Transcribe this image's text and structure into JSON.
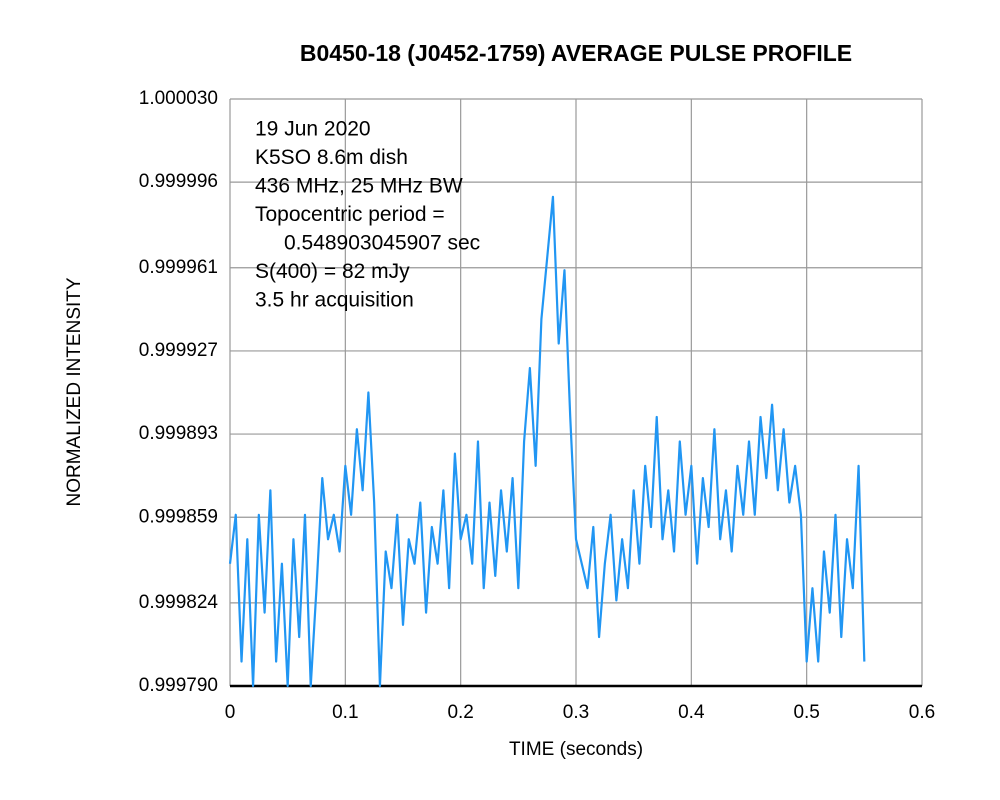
{
  "chart_data": {
    "type": "line",
    "title": "B0450-18 (J0452-1759) AVERAGE PULSE PROFILE",
    "x_label": "TIME (seconds)",
    "y_label": "NORMALIZED INTENSITY",
    "annotations": [
      "19 Jun 2020",
      "K5SO 8.6m dish",
      "436 MHz, 25 MHz BW",
      "Topocentric period =",
      "0.548903045907 sec",
      "S(400) = 82 mJy",
      "3.5 hr acquisition"
    ],
    "x": [
      0,
      0.005,
      0.01,
      0.015,
      0.02,
      0.025,
      0.03,
      0.035,
      0.04,
      0.045,
      0.05,
      0.055,
      0.06,
      0.065,
      0.07,
      0.075,
      0.08,
      0.085,
      0.09,
      0.095,
      0.1,
      0.105,
      0.11,
      0.115,
      0.12,
      0.125,
      0.13,
      0.135,
      0.14,
      0.145,
      0.15,
      0.155,
      0.16,
      0.165,
      0.17,
      0.175,
      0.18,
      0.185,
      0.19,
      0.195,
      0.2,
      0.205,
      0.21,
      0.215,
      0.22,
      0.225,
      0.23,
      0.235,
      0.24,
      0.245,
      0.25,
      0.255,
      0.26,
      0.265,
      0.27,
      0.275,
      0.28,
      0.285,
      0.29,
      0.295,
      0.3,
      0.305,
      0.31,
      0.315,
      0.32,
      0.325,
      0.33,
      0.335,
      0.34,
      0.345,
      0.35,
      0.355,
      0.36,
      0.365,
      0.37,
      0.375,
      0.38,
      0.385,
      0.39,
      0.395,
      0.4,
      0.405,
      0.41,
      0.415,
      0.42,
      0.425,
      0.43,
      0.435,
      0.44,
      0.445,
      0.45,
      0.455,
      0.46,
      0.465,
      0.47,
      0.475,
      0.48,
      0.485,
      0.49,
      0.495,
      0.5,
      0.505,
      0.51,
      0.515,
      0.52,
      0.525,
      0.53,
      0.535,
      0.54,
      0.545,
      0.55
    ],
    "series": [
      {
        "name": "pulse profile",
        "color": "#2196f3",
        "values": [
          0.99984,
          0.99986,
          0.9998,
          0.99985,
          0.99979,
          0.99986,
          0.99982,
          0.99987,
          0.9998,
          0.99984,
          0.99979,
          0.99985,
          0.99981,
          0.99986,
          0.99979,
          0.99983,
          0.999875,
          0.99985,
          0.99986,
          0.999845,
          0.99988,
          0.99986,
          0.999895,
          0.99987,
          0.99991,
          0.999865,
          0.99979,
          0.999845,
          0.99983,
          0.99986,
          0.999815,
          0.99985,
          0.99984,
          0.999865,
          0.99982,
          0.999855,
          0.99984,
          0.99987,
          0.99983,
          0.999885,
          0.99985,
          0.99986,
          0.99984,
          0.99989,
          0.99983,
          0.999865,
          0.999835,
          0.99987,
          0.999845,
          0.999875,
          0.99983,
          0.99989,
          0.99992,
          0.99988,
          0.99994,
          0.999965,
          0.99999,
          0.99993,
          0.99996,
          0.9999,
          0.99985,
          0.99984,
          0.99983,
          0.999855,
          0.99981,
          0.99984,
          0.99986,
          0.999825,
          0.99985,
          0.99983,
          0.99987,
          0.99984,
          0.99988,
          0.999855,
          0.9999,
          0.99985,
          0.99987,
          0.999845,
          0.99989,
          0.99986,
          0.99988,
          0.99984,
          0.999875,
          0.999855,
          0.999895,
          0.99985,
          0.99987,
          0.999845,
          0.99988,
          0.99986,
          0.99989,
          0.99986,
          0.9999,
          0.999875,
          0.999905,
          0.99987,
          0.999895,
          0.999865,
          0.99988,
          0.99986,
          0.9998,
          0.99983,
          0.9998,
          0.999845,
          0.99982,
          0.99986,
          0.99981,
          0.99985,
          0.99983,
          0.99988,
          0.9998
        ]
      }
    ],
    "xlim": [
      0,
      0.6
    ],
    "xticks": [
      0,
      0.1,
      0.2,
      0.3,
      0.4,
      0.5,
      0.6
    ],
    "ylim": [
      0.99979,
      1.00003
    ],
    "yticks": [
      {
        "value": 0.99979,
        "label": "0.999790"
      },
      0.999824,
      0.999859,
      0.999893,
      0.999927,
      0.999961,
      0.999996,
      {
        "value": 1.00003,
        "label": "1.000030"
      }
    ],
    "grid": true
  }
}
